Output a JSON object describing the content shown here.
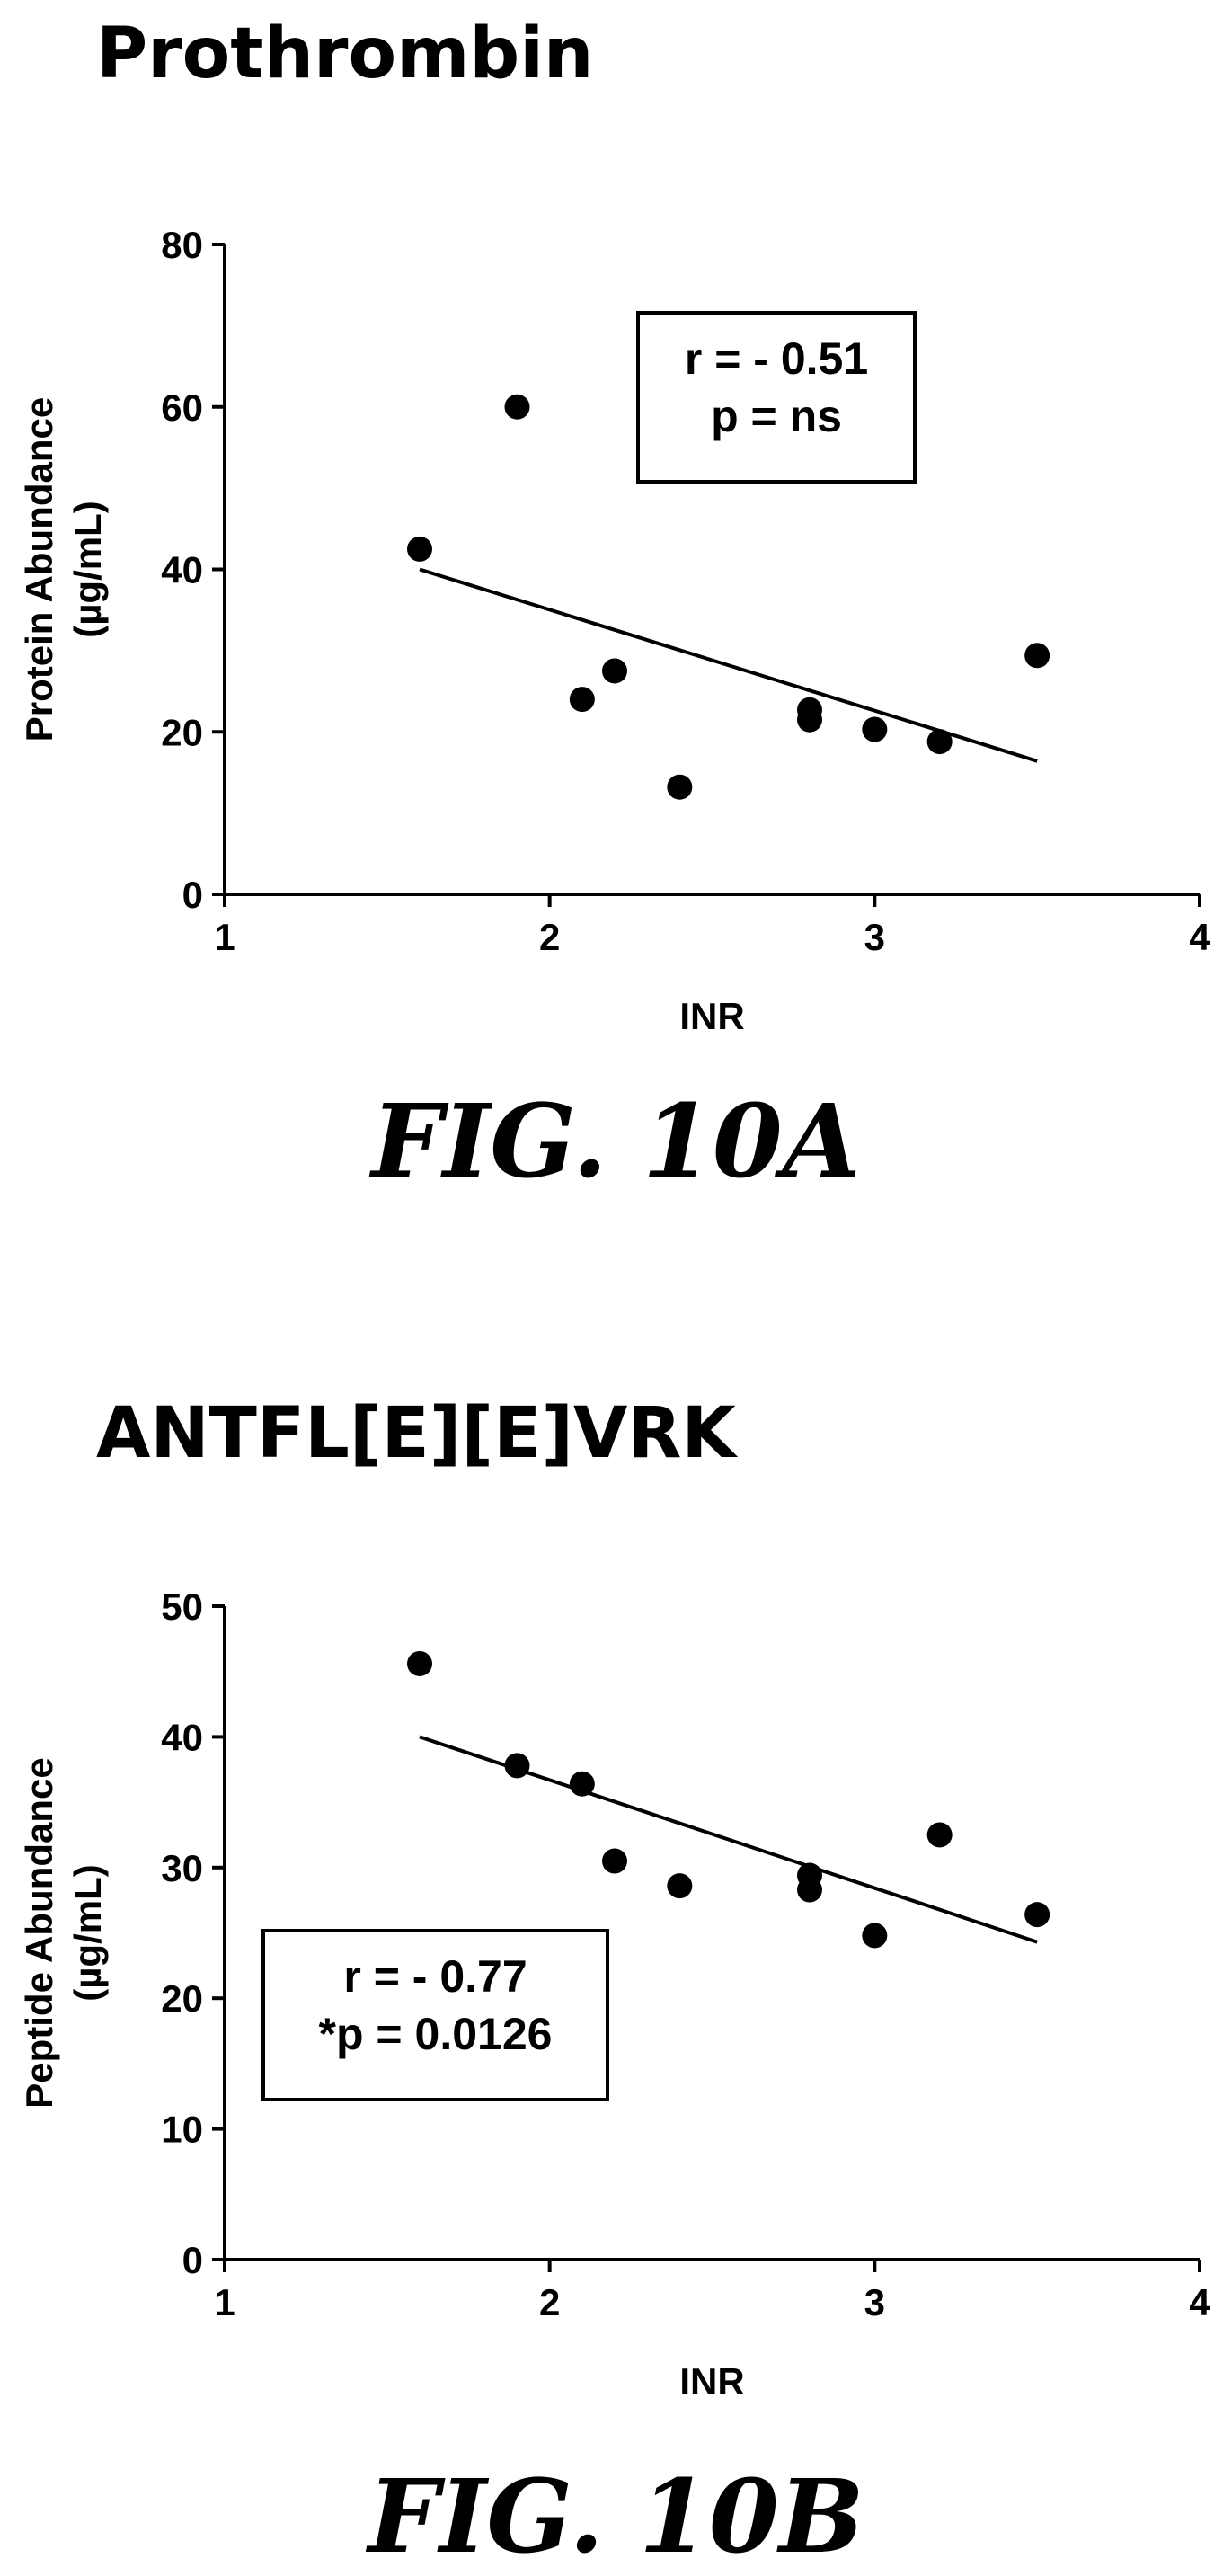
{
  "chart_data": [
    {
      "type": "scatter",
      "title": "Prothrombin",
      "xlabel": "INR",
      "ylabel": [
        "Protein Abundance",
        "(µg/mL)"
      ],
      "xlim": [
        1,
        4
      ],
      "ylim": [
        0,
        80
      ],
      "xticks": [
        "1",
        "2",
        "3",
        "4"
      ],
      "yticks": [
        "0",
        "20",
        "40",
        "60",
        "80"
      ],
      "points": [
        {
          "x": 1.6,
          "y": 42.5
        },
        {
          "x": 1.9,
          "y": 60
        },
        {
          "x": 2.1,
          "y": 24
        },
        {
          "x": 2.2,
          "y": 27.5
        },
        {
          "x": 2.4,
          "y": 13.2
        },
        {
          "x": 2.8,
          "y": 22.7
        },
        {
          "x": 2.8,
          "y": 21.5
        },
        {
          "x": 3.0,
          "y": 20.3
        },
        {
          "x": 3.2,
          "y": 18.8
        },
        {
          "x": 3.5,
          "y": 29.4
        }
      ],
      "regression": {
        "x": [
          1.6,
          3.5
        ],
        "y": [
          40,
          16.4
        ]
      },
      "stats": [
        "r = - 0.51",
        "p = ns"
      ],
      "stats_position": "top-right",
      "grid": false,
      "fig_label": "FIG. 10A"
    },
    {
      "type": "scatter",
      "title": "ANTFL[E][E]VRK",
      "xlabel": "INR",
      "ylabel": [
        "Peptide Abundance",
        "(µg/mL)"
      ],
      "xlim": [
        1,
        4
      ],
      "ylim": [
        0,
        50
      ],
      "xticks": [
        "1",
        "2",
        "3",
        "4"
      ],
      "yticks": [
        "0",
        "10",
        "20",
        "30",
        "40",
        "50"
      ],
      "points": [
        {
          "x": 1.6,
          "y": 45.6
        },
        {
          "x": 1.9,
          "y": 37.8
        },
        {
          "x": 2.1,
          "y": 36.4
        },
        {
          "x": 2.2,
          "y": 30.5
        },
        {
          "x": 2.4,
          "y": 28.6
        },
        {
          "x": 2.8,
          "y": 29.4
        },
        {
          "x": 2.8,
          "y": 28.3
        },
        {
          "x": 3.0,
          "y": 24.8
        },
        {
          "x": 3.2,
          "y": 32.5
        },
        {
          "x": 3.5,
          "y": 26.4
        }
      ],
      "regression": {
        "x": [
          1.6,
          3.5
        ],
        "y": [
          40,
          24.3
        ]
      },
      "stats": [
        "r = - 0.77",
        "*p = 0.0126"
      ],
      "stats_position": "bottom-left",
      "grid": false,
      "fig_label": "FIG. 10B"
    }
  ]
}
